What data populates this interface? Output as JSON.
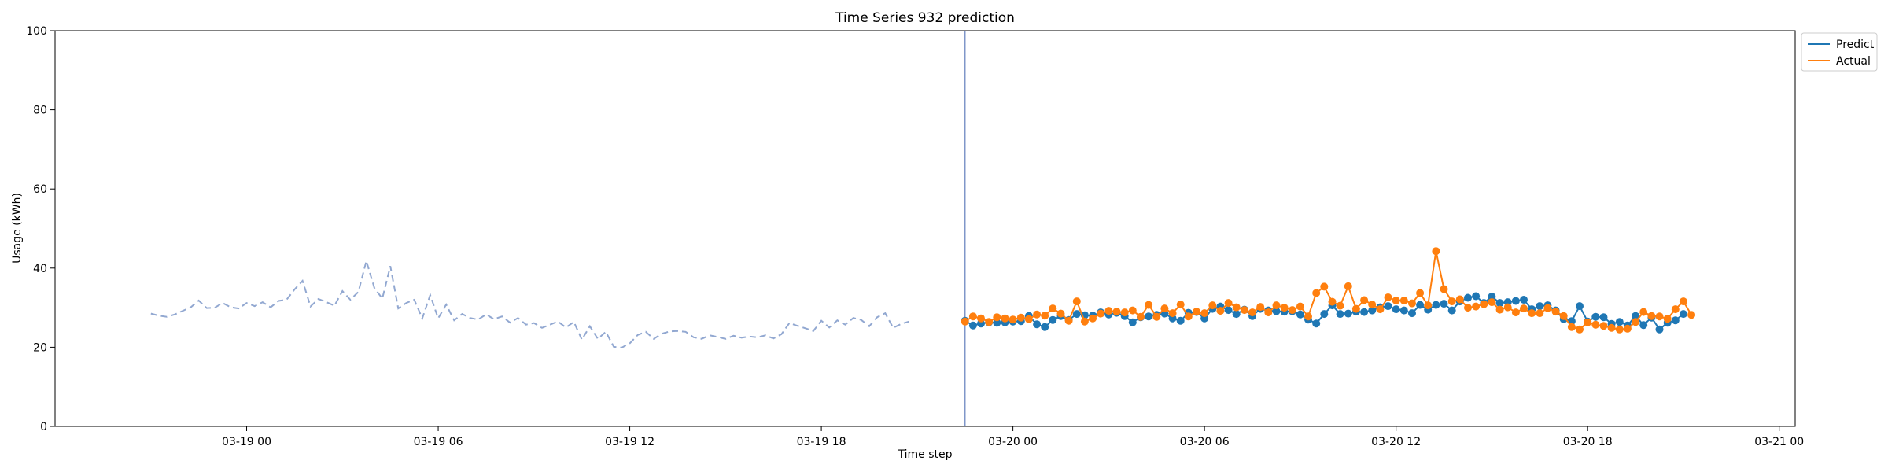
{
  "chart_data": {
    "type": "line",
    "title": "Time Series 932 prediction",
    "xlabel": "Time step",
    "ylabel": "Usage (kWh)",
    "ylim": [
      0,
      100
    ],
    "yticks": [
      0,
      20,
      40,
      60,
      80,
      100
    ],
    "xlim": [
      "2024-03-18 18:00",
      "2024-03-21 00:30"
    ],
    "xticks": [
      {
        "value": "2024-03-19 00:00",
        "label": "03-19 00"
      },
      {
        "value": "2024-03-19 06:00",
        "label": "03-19 06"
      },
      {
        "value": "2024-03-19 12:00",
        "label": "03-19 12"
      },
      {
        "value": "2024-03-19 18:00",
        "label": "03-19 18"
      },
      {
        "value": "2024-03-20 00:00",
        "label": "03-20 00"
      },
      {
        "value": "2024-03-20 06:00",
        "label": "03-20 06"
      },
      {
        "value": "2024-03-20 12:00",
        "label": "03-20 12"
      },
      {
        "value": "2024-03-20 18:00",
        "label": "03-20 18"
      },
      {
        "value": "2024-03-21 00:00",
        "label": "03-21 00"
      }
    ],
    "grid": false,
    "legend_position": "outside-top-right",
    "forecast_start": "2024-03-19 22:30",
    "time_step_minutes": 15,
    "history": {
      "start": "2024-03-18 21:00",
      "color": "#92a8d1",
      "style": "dashed",
      "values": [
        28.5,
        28.0,
        27.7,
        28.3,
        29.2,
        30.1,
        31.8,
        29.9,
        30.0,
        31.2,
        30.1,
        29.8,
        31.2,
        30.4,
        31.4,
        30.1,
        31.7,
        32.0,
        34.6,
        36.8,
        30.3,
        32.2,
        31.4,
        30.5,
        34.2,
        32.0,
        34.0,
        41.8,
        35.0,
        32.3,
        40.5,
        29.8,
        31.2,
        32.0,
        27.3,
        33.2,
        27.3,
        30.8,
        26.8,
        28.4,
        27.4,
        27.0,
        28.3,
        27.1,
        27.8,
        26.2,
        27.4,
        25.7,
        26.1,
        24.9,
        25.7,
        26.5,
        25.0,
        26.4,
        21.9,
        25.3,
        22.1,
        23.9,
        20.1,
        19.9,
        21.0,
        23.1,
        23.9,
        22.1,
        23.4,
        24.0,
        24.1,
        23.9,
        22.5,
        22.1,
        23.0,
        22.6,
        22.1,
        22.9,
        22.4,
        22.7,
        22.5,
        23.0,
        22.2,
        23.3,
        26.1,
        25.4,
        24.8,
        24.1,
        26.7,
        25.0,
        26.8,
        25.7,
        27.4,
        26.9,
        25.3,
        27.6,
        28.6,
        24.9,
        25.9,
        26.5
      ]
    },
    "series": [
      {
        "name": "Predict",
        "color": "#1f77b4",
        "start": "2024-03-19 22:30",
        "values": [
          26.7,
          25.5,
          26.0,
          26.3,
          26.2,
          26.3,
          26.5,
          26.6,
          27.9,
          25.8,
          25.1,
          26.9,
          27.9,
          26.9,
          28.4,
          28.1,
          28.0,
          28.8,
          28.3,
          28.7,
          27.9,
          26.3,
          27.6,
          27.8,
          28.2,
          28.5,
          27.3,
          26.7,
          28.7,
          28.9,
          27.3,
          29.7,
          30.3,
          29.4,
          28.4,
          29.5,
          27.9,
          29.7,
          29.3,
          29.1,
          29.0,
          29.1,
          28.3,
          27.0,
          26.0,
          28.4,
          30.6,
          28.4,
          28.5,
          29.0,
          28.9,
          29.3,
          30.1,
          30.4,
          29.6,
          29.3,
          28.6,
          30.7,
          29.5,
          30.7,
          31.0,
          29.3,
          31.6,
          32.5,
          32.9,
          31.2,
          32.8,
          31.2,
          31.4,
          31.7,
          32.0,
          29.6,
          30.4,
          30.6,
          29.3,
          27.1,
          26.6,
          30.4,
          26.5,
          27.7,
          27.6,
          25.9,
          26.4,
          25.5,
          27.9,
          25.6,
          27.5,
          24.5,
          26.2,
          26.8,
          28.4
        ]
      },
      {
        "name": "Actual",
        "color": "#ff7f0e",
        "start": "2024-03-19 22:30",
        "values": [
          26.5,
          27.8,
          27.3,
          26.4,
          27.6,
          27.3,
          27.0,
          27.5,
          27.1,
          28.3,
          28.0,
          29.8,
          28.5,
          26.7,
          31.6,
          26.5,
          27.3,
          28.5,
          29.2,
          29.0,
          28.8,
          29.3,
          27.7,
          30.7,
          27.7,
          29.8,
          28.6,
          30.8,
          27.8,
          29.0,
          28.6,
          30.6,
          29.2,
          31.2,
          30.1,
          29.4,
          28.8,
          30.2,
          28.8,
          30.6,
          30.0,
          29.4,
          30.3,
          27.8,
          33.7,
          35.3,
          31.5,
          30.5,
          35.4,
          29.7,
          31.9,
          30.8,
          29.6,
          32.6,
          31.8,
          31.8,
          31.1,
          33.7,
          30.6,
          44.3,
          34.7,
          31.6,
          32.1,
          30.0,
          30.3,
          30.9,
          31.4,
          29.5,
          30.1,
          28.8,
          29.8,
          28.6,
          28.6,
          29.9,
          29.0,
          27.9,
          25.1,
          24.5,
          26.3,
          25.7,
          25.4,
          24.9,
          24.5,
          24.7,
          26.4,
          28.9,
          27.9,
          27.8,
          27.2,
          29.6,
          31.6,
          28.2
        ]
      }
    ]
  }
}
